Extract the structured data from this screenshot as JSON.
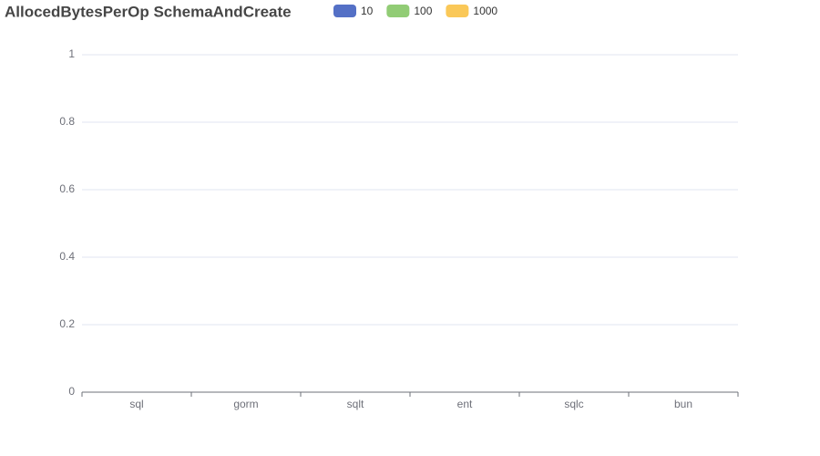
{
  "chart_data": {
    "type": "bar",
    "title": "AllocedBytesPerOp SchemaAndCreate",
    "categories": [
      "sql",
      "gorm",
      "sqlt",
      "ent",
      "sqlc",
      "bun"
    ],
    "series": [
      {
        "name": "10",
        "color": "#5470c6",
        "values": [
          0,
          0,
          0,
          0,
          0,
          0
        ]
      },
      {
        "name": "100",
        "color": "#91cc75",
        "values": [
          0,
          0,
          0,
          0,
          0,
          0
        ]
      },
      {
        "name": "1000",
        "color": "#fac858",
        "values": [
          0,
          0,
          0,
          0,
          0,
          0
        ]
      }
    ],
    "ylim": [
      0,
      1
    ],
    "yticks": [
      0,
      0.2,
      0.4,
      0.6,
      0.8,
      1
    ],
    "grid": true,
    "legend": "top"
  }
}
